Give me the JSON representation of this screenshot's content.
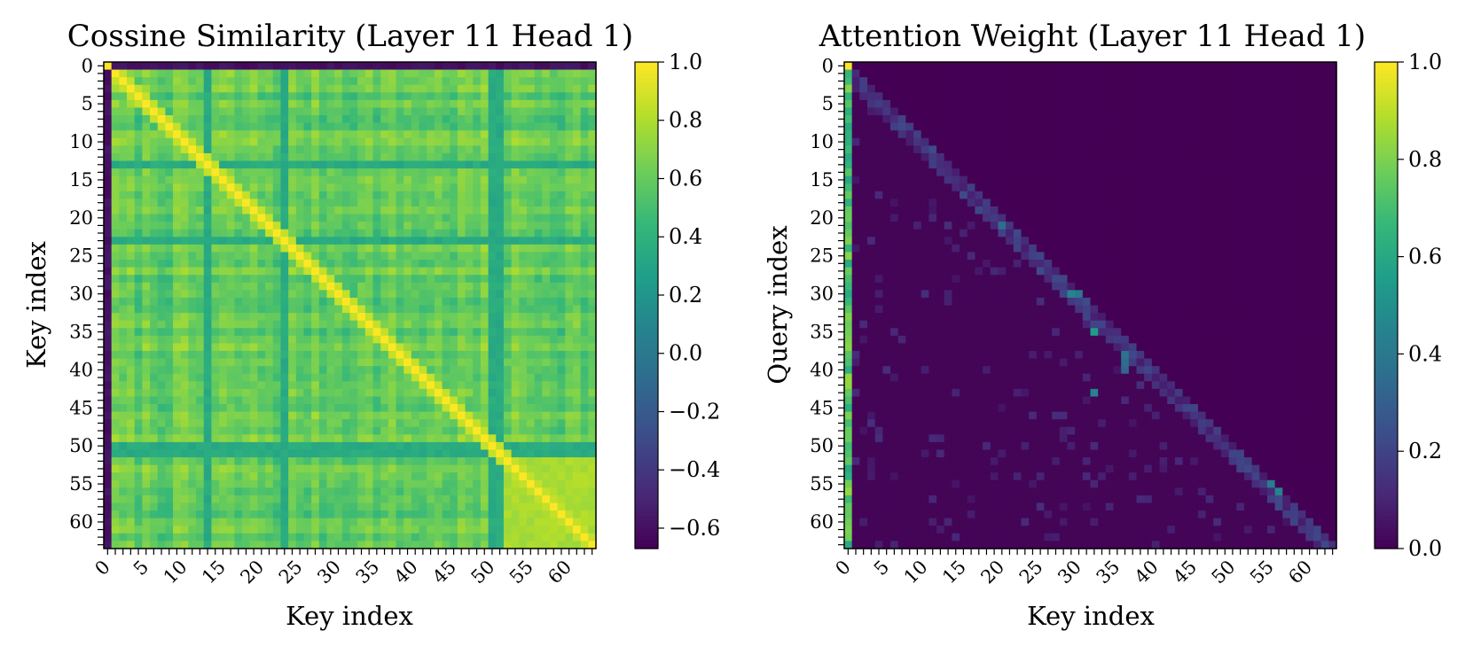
{
  "chart_data": [
    {
      "type": "heatmap",
      "title": "Cossine Similarity (Layer 11 Head 1)",
      "xlabel": "Key index",
      "ylabel": "Key index",
      "size": 64,
      "x_ticks": [
        "0",
        "5",
        "10",
        "15",
        "20",
        "25",
        "30",
        "35",
        "40",
        "45",
        "50",
        "55",
        "60"
      ],
      "y_ticks": [
        "0",
        "5",
        "10",
        "15",
        "20",
        "25",
        "30",
        "35",
        "40",
        "45",
        "50",
        "55",
        "60"
      ],
      "colormap": "viridis",
      "vmin": -0.67,
      "vmax": 1.0,
      "colorbar_ticks": [
        "1.0",
        "0.8",
        "0.6",
        "0.4",
        "0.2",
        "0.0",
        "−0.2",
        "−0.4",
        "−0.6"
      ],
      "colorbar_values": [
        1.0,
        0.8,
        0.6,
        0.4,
        0.2,
        0.0,
        -0.2,
        -0.4,
        -0.6
      ],
      "pattern": {
        "diagonal": 1.0,
        "first_row_col": -0.6,
        "background_range": [
          0.45,
          0.75
        ],
        "dark_bands_index": [
          13,
          23,
          50,
          51
        ],
        "dark_band_value": 0.35,
        "bright_block_start": 52,
        "bright_block_value": 0.78
      }
    },
    {
      "type": "heatmap",
      "title": "Attention Weight (Layer 11 Head 1)",
      "xlabel": "Key index",
      "ylabel": "Query index",
      "size": 64,
      "x_ticks": [
        "0",
        "5",
        "10",
        "15",
        "20",
        "25",
        "30",
        "35",
        "40",
        "45",
        "50",
        "55",
        "60"
      ],
      "y_ticks": [
        "0",
        "5",
        "10",
        "15",
        "20",
        "25",
        "30",
        "35",
        "40",
        "45",
        "50",
        "55",
        "60"
      ],
      "colormap": "viridis",
      "vmin": 0.0,
      "vmax": 1.0,
      "colorbar_ticks": [
        "1.0",
        "0.8",
        "0.6",
        "0.4",
        "0.2",
        "0.0"
      ],
      "colorbar_values": [
        1.0,
        0.8,
        0.6,
        0.4,
        0.2,
        0.0
      ],
      "pattern": {
        "causal_mask": true,
        "first_column_range": [
          0.6,
          0.85
        ],
        "first_cell": 1.0,
        "hotspots": [
          {
            "q": 30,
            "k": 29,
            "v": 0.45
          },
          {
            "q": 30,
            "k": 30,
            "v": 0.4
          },
          {
            "q": 35,
            "k": 32,
            "v": 0.55
          },
          {
            "q": 43,
            "k": 32,
            "v": 0.45
          },
          {
            "q": 55,
            "k": 55,
            "v": 0.42
          },
          {
            "q": 56,
            "k": 56,
            "v": 0.45
          },
          {
            "q": 21,
            "k": 20,
            "v": 0.35
          },
          {
            "q": 38,
            "k": 36,
            "v": 0.38
          },
          {
            "q": 39,
            "k": 36,
            "v": 0.35
          },
          {
            "q": 40,
            "k": 36,
            "v": 0.33
          }
        ],
        "near_diagonal_value": 0.15,
        "background_value": 0.01
      }
    }
  ]
}
